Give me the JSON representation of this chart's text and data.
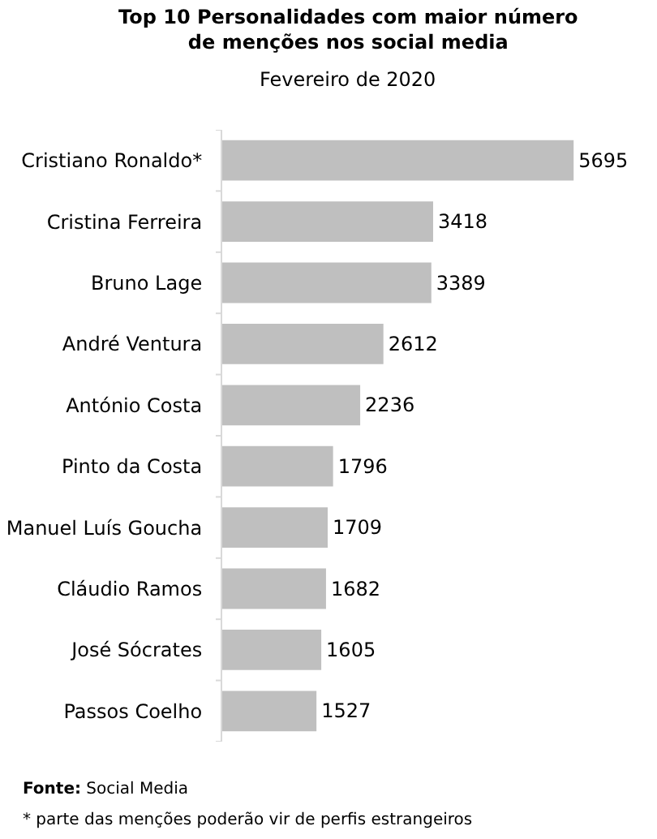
{
  "chart_data": {
    "type": "bar",
    "orientation": "horizontal",
    "title": "Top 10 Personalidades com maior número\nde menções nos social media",
    "subtitle": "Fevereiro de 2020",
    "categories": [
      "Cristiano Ronaldo*",
      "Cristina Ferreira",
      "Bruno Lage",
      "André Ventura",
      "António Costa",
      "Pinto da Costa",
      "Manuel Luís Goucha",
      "Cláudio Ramos",
      "José Sócrates",
      "Passos Coelho"
    ],
    "values": [
      5695,
      3418,
      3389,
      2612,
      2236,
      1796,
      1709,
      1682,
      1605,
      1527
    ],
    "color": "#bfbfbf",
    "data_labels": true,
    "tick_labels": "y",
    "annotations": [
      "Fonte: Social Media",
      "* parte das menções poderão vir de perfis estrangeiros"
    ]
  }
}
